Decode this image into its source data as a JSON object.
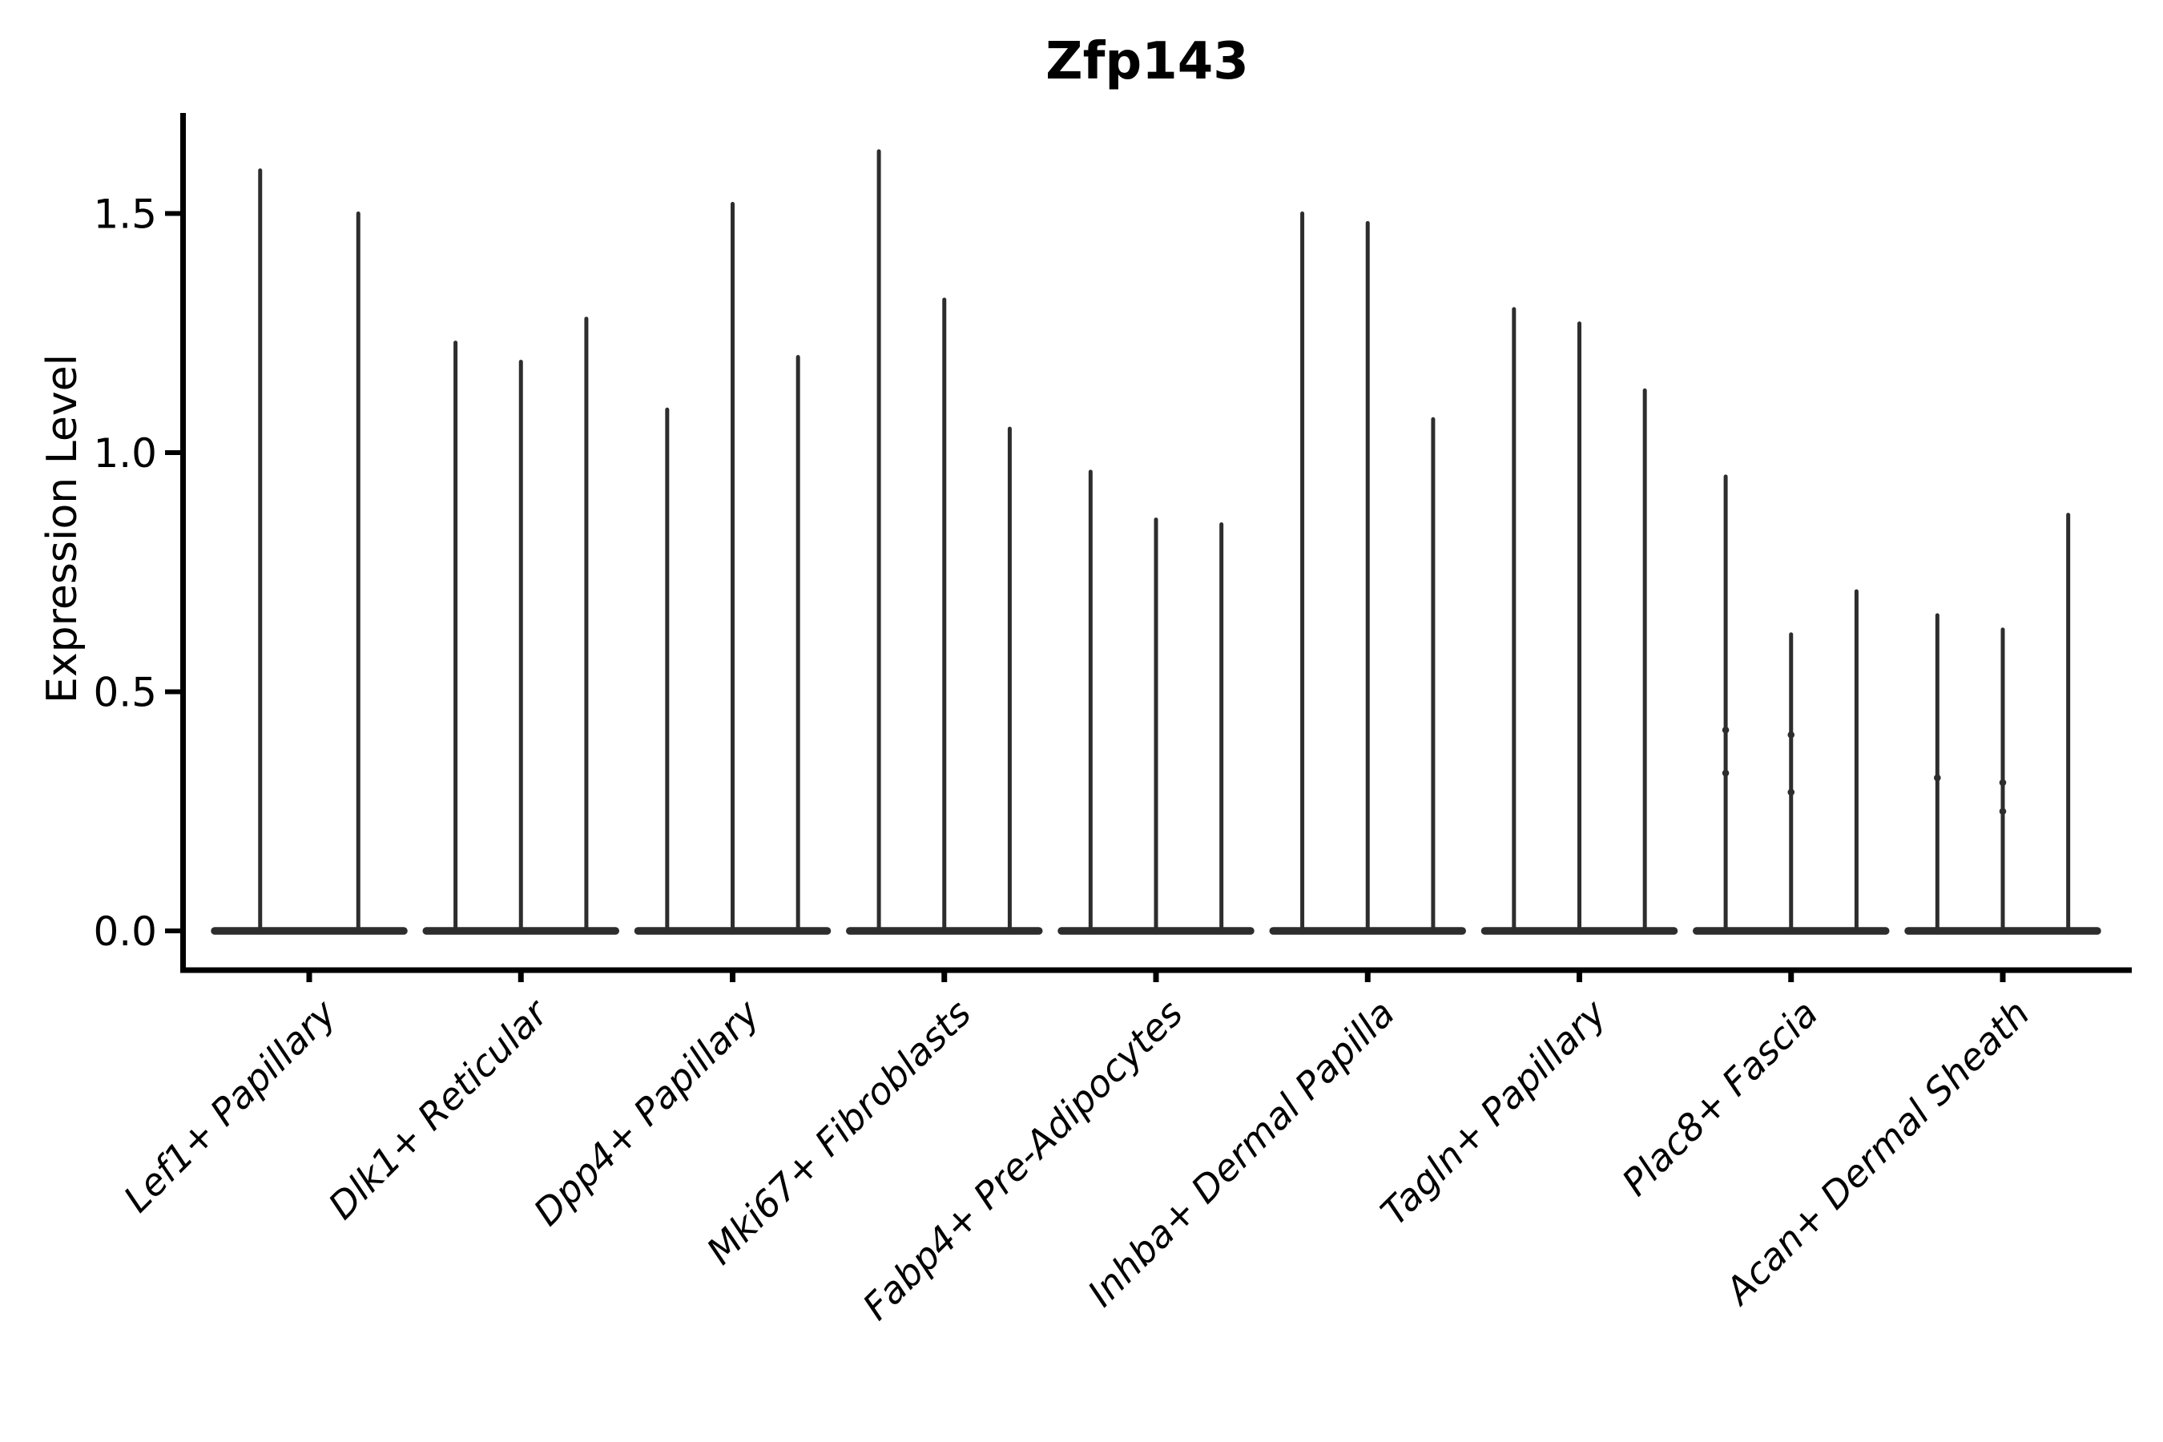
{
  "title": "Zfp143",
  "y_axis_label": "Expression Level",
  "chart_data": {
    "type": "violin",
    "title": "Zfp143",
    "xlabel": "",
    "ylabel": "Expression Level",
    "ylim": [
      0,
      1.71
    ],
    "yticks": [
      0.0,
      0.5,
      1.0,
      1.5
    ],
    "ytick_labels": [
      "0.0",
      "0.5",
      "1.0",
      "1.5"
    ],
    "grid": false,
    "legend_position": "none",
    "x_tick_label_rotation_deg": 45,
    "x_tick_label_style": "italic",
    "description": "Stacked-at-zero violin plot of gene expression; each cell-type group contains 2-3 ultra-thin violins whose flat dense base sits at expression 0 and whose thin spike reaches the listed maximum expression value.",
    "categories": [
      "Lef1+ Papillary",
      "Dlk1+ Reticular",
      "Dpp4+ Papillary",
      "Mki67+ Fibroblasts",
      "Fabp4+ Pre-Adipocytes",
      "Inhba+ Dermal Papilla",
      "Tagln+ Papillary",
      "Plac8+ Fascia",
      "Acan+ Dermal Sheath"
    ],
    "groups": [
      {
        "category": "Lef1+ Papillary",
        "violin_max": [
          1.59,
          1.5
        ]
      },
      {
        "category": "Dlk1+ Reticular",
        "violin_max": [
          1.23,
          1.19,
          1.28
        ]
      },
      {
        "category": "Dpp4+ Papillary",
        "violin_max": [
          1.09,
          1.52,
          1.2
        ]
      },
      {
        "category": "Mki67+ Fibroblasts",
        "violin_max": [
          1.63,
          1.32,
          1.05
        ]
      },
      {
        "category": "Fabp4+ Pre-Adipocytes",
        "violin_max": [
          0.96,
          0.86,
          0.85
        ]
      },
      {
        "category": "Inhba+ Dermal Papilla",
        "violin_max": [
          1.5,
          1.48,
          1.07
        ]
      },
      {
        "category": "Tagln+ Papillary",
        "violin_max": [
          1.3,
          1.27,
          1.13
        ]
      },
      {
        "category": "Plac8+ Fascia",
        "violin_max": [
          0.95,
          0.62,
          0.71
        ]
      },
      {
        "category": "Acan+ Dermal Sheath",
        "violin_max": [
          0.66,
          0.63,
          0.87
        ]
      }
    ],
    "point_marks": [
      {
        "group": 7,
        "violin": 0,
        "values": [
          0.42,
          0.33
        ]
      },
      {
        "group": 7,
        "violin": 1,
        "values": [
          0.41,
          0.29
        ]
      },
      {
        "group": 8,
        "violin": 0,
        "values": [
          0.32
        ]
      },
      {
        "group": 8,
        "violin": 1,
        "values": [
          0.31,
          0.25
        ]
      }
    ],
    "colors": {
      "violin": "#2d2d2d",
      "axis": "#000000",
      "text": "#000000",
      "background": "#ffffff"
    }
  }
}
